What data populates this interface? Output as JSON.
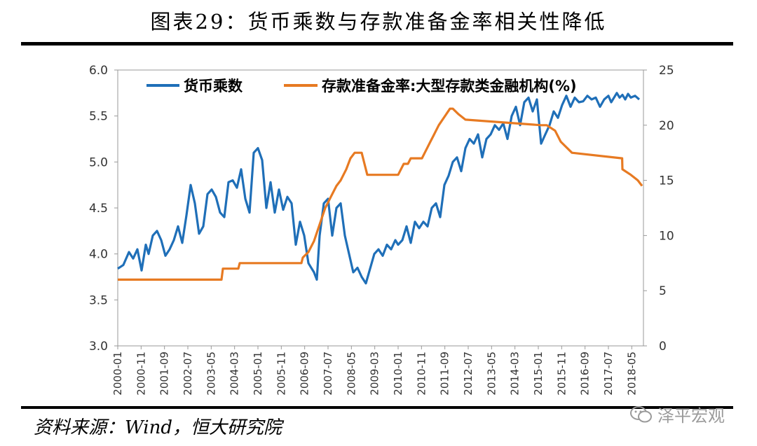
{
  "header": {
    "title": "图表29：货币乘数与存款准备金率相关性降低"
  },
  "footer": {
    "source": "资料来源：Wind，恒大研究院",
    "watermark": "泽平宏观"
  },
  "colors": {
    "series1": "#1f6fb8",
    "series2": "#e77a22",
    "axis": "#999999"
  },
  "chart_data": {
    "type": "line",
    "title": "图表29：货币乘数与存款准备金率相关性降低",
    "y_left": {
      "ylim": [
        3.0,
        6.0
      ],
      "ticks": [
        "3.0",
        "3.5",
        "4.0",
        "4.5",
        "5.0",
        "5.5",
        "6.0"
      ]
    },
    "y_right": {
      "ylim": [
        0,
        25
      ],
      "ticks": [
        "0",
        "5",
        "10",
        "15",
        "20",
        "25"
      ]
    },
    "x_range": [
      2000.0,
      2018.75
    ],
    "x_ticks": [
      "2000-01",
      "2000-11",
      "2001-09",
      "2002-07",
      "2003-05",
      "2004-03",
      "2005-01",
      "2005-11",
      "2006-09",
      "2007-07",
      "2008-05",
      "2009-03",
      "2010-01",
      "2010-11",
      "2011-09",
      "2012-07",
      "2013-05",
      "2014-03",
      "2015-01",
      "2015-11",
      "2016-09",
      "2017-07",
      "2018-05"
    ],
    "legend": {
      "placement": "top",
      "entries": [
        "货币乘数",
        "存款准备金率:大型存款类金融机构(%)"
      ]
    },
    "series": [
      {
        "name": "货币乘数",
        "axis": "left",
        "x": [
          2000.0,
          2000.2,
          2000.4,
          2000.55,
          2000.7,
          2000.85,
          2001.0,
          2001.1,
          2001.25,
          2001.4,
          2001.55,
          2001.7,
          2001.85,
          2002.0,
          2002.15,
          2002.3,
          2002.45,
          2002.6,
          2002.75,
          2002.9,
          2003.05,
          2003.2,
          2003.35,
          2003.5,
          2003.65,
          2003.8,
          2003.95,
          2004.1,
          2004.25,
          2004.4,
          2004.55,
          2004.7,
          2004.85,
          2005.0,
          2005.15,
          2005.3,
          2005.45,
          2005.6,
          2005.75,
          2005.9,
          2006.05,
          2006.2,
          2006.35,
          2006.5,
          2006.65,
          2006.8,
          2006.9,
          2007.0,
          2007.1,
          2007.2,
          2007.35,
          2007.5,
          2007.65,
          2007.8,
          2007.95,
          2008.1,
          2008.25,
          2008.4,
          2008.55,
          2008.7,
          2008.85,
          2009.0,
          2009.15,
          2009.3,
          2009.45,
          2009.6,
          2009.75,
          2009.9,
          2010.0,
          2010.15,
          2010.3,
          2010.45,
          2010.6,
          2010.75,
          2010.9,
          2011.05,
          2011.2,
          2011.35,
          2011.5,
          2011.65,
          2011.8,
          2011.95,
          2012.1,
          2012.25,
          2012.4,
          2012.55,
          2012.7,
          2012.85,
          2013.0,
          2013.15,
          2013.3,
          2013.45,
          2013.6,
          2013.75,
          2013.9,
          2014.05,
          2014.2,
          2014.35,
          2014.5,
          2014.65,
          2014.8,
          2014.95,
          2015.1,
          2015.25,
          2015.4,
          2015.55,
          2015.7,
          2015.85,
          2016.0,
          2016.15,
          2016.3,
          2016.45,
          2016.6,
          2016.75,
          2016.9,
          2017.05,
          2017.2,
          2017.35,
          2017.5,
          2017.6,
          2017.7,
          2017.8,
          2017.9,
          2018.0,
          2018.1,
          2018.2,
          2018.3,
          2018.45,
          2018.6
        ],
        "values": [
          3.84,
          3.88,
          4.02,
          3.95,
          4.05,
          3.82,
          4.1,
          4.0,
          4.2,
          4.25,
          4.15,
          3.98,
          4.05,
          4.15,
          4.3,
          4.12,
          4.42,
          4.75,
          4.55,
          4.22,
          4.3,
          4.65,
          4.7,
          4.62,
          4.45,
          4.4,
          4.78,
          4.8,
          4.72,
          4.92,
          4.6,
          4.45,
          5.1,
          5.15,
          5.02,
          4.5,
          4.78,
          4.45,
          4.7,
          4.48,
          4.62,
          4.55,
          4.1,
          4.35,
          4.2,
          3.9,
          3.85,
          3.8,
          3.72,
          4.2,
          4.55,
          4.6,
          4.2,
          4.5,
          4.55,
          4.2,
          4.0,
          3.8,
          3.85,
          3.75,
          3.68,
          3.84,
          4.0,
          4.05,
          3.98,
          4.1,
          4.05,
          4.15,
          4.1,
          4.15,
          4.3,
          4.12,
          4.35,
          4.28,
          4.35,
          4.3,
          4.5,
          4.55,
          4.4,
          4.75,
          4.85,
          5.0,
          5.05,
          4.9,
          5.15,
          5.25,
          5.2,
          5.3,
          5.05,
          5.25,
          5.3,
          5.4,
          5.35,
          5.42,
          5.25,
          5.5,
          5.6,
          5.4,
          5.65,
          5.7,
          5.55,
          5.68,
          5.2,
          5.3,
          5.4,
          5.55,
          5.48,
          5.62,
          5.72,
          5.6,
          5.7,
          5.65,
          5.66,
          5.72,
          5.68,
          5.7,
          5.6,
          5.68,
          5.72,
          5.65,
          5.7,
          5.75,
          5.7,
          5.73,
          5.68,
          5.74,
          5.7,
          5.72,
          5.68
        ]
      },
      {
        "name": "存款准备金率:大型存款类金融机构(%)",
        "axis": "right",
        "x": [
          2000.0,
          2003.7,
          2003.75,
          2004.3,
          2004.35,
          2006.55,
          2006.6,
          2006.8,
          2007.0,
          2007.2,
          2007.4,
          2007.6,
          2007.8,
          2007.95,
          2008.15,
          2008.3,
          2008.45,
          2008.7,
          2008.8,
          2008.9,
          2009.0,
          2010.0,
          2010.1,
          2010.2,
          2010.35,
          2010.45,
          2010.6,
          2010.85,
          2010.95,
          2011.05,
          2011.15,
          2011.25,
          2011.35,
          2011.45,
          2011.85,
          2011.95,
          2012.15,
          2012.4,
          2015.1,
          2015.3,
          2015.6,
          2015.8,
          2016.2,
          2017.99,
          2018.0,
          2018.3,
          2018.55,
          2018.7
        ],
        "values": [
          6.0,
          6.0,
          7.0,
          7.0,
          7.5,
          7.5,
          8.0,
          8.5,
          9.5,
          11.0,
          12.5,
          13.5,
          14.5,
          15.0,
          16.0,
          17.0,
          17.5,
          17.5,
          16.5,
          15.5,
          15.5,
          15.5,
          16.0,
          16.5,
          16.5,
          17.0,
          17.0,
          17.0,
          17.5,
          18.0,
          18.5,
          19.0,
          19.5,
          20.0,
          21.5,
          21.5,
          21.0,
          20.5,
          20.0,
          20.0,
          19.5,
          18.5,
          17.5,
          17.0,
          16.0,
          15.5,
          15.0,
          14.5
        ]
      }
    ]
  }
}
